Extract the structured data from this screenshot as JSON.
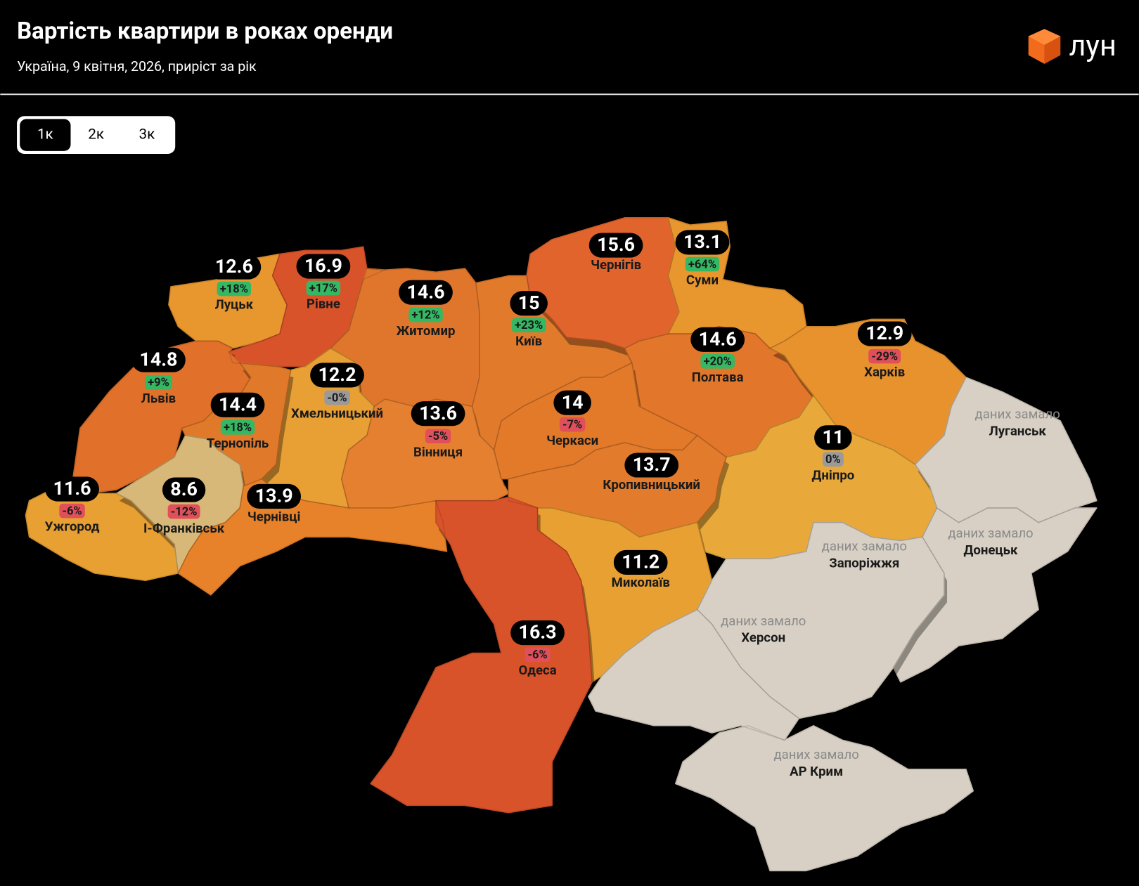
{
  "header": {
    "title": "Вартість квартири в роках оренди",
    "subtitle": "Україна, 9 квітня, 2026, приріст за рік",
    "logo": "лун"
  },
  "tabs": {
    "items": [
      "1к",
      "2к",
      "3к"
    ],
    "selected": 0
  },
  "regions": [
    {
      "name": "Луцьк",
      "value": 12.6,
      "change": "+18%",
      "change_color": "#34b864",
      "color": "#e8962e"
    },
    {
      "name": "Рівне",
      "value": 16.9,
      "change": "+17%",
      "change_color": "#34b864",
      "color": "#d9532a"
    },
    {
      "name": "Житомир",
      "value": 14.6,
      "change": "+12%",
      "change_color": "#34b864",
      "color": "#e0762b"
    },
    {
      "name": "Київ",
      "value": 15,
      "change": "+23%",
      "change_color": "#34b864",
      "color": "#e27a2c"
    },
    {
      "name": "Чернігів",
      "value": 15.6,
      "color": "#e2642d"
    },
    {
      "name": "Суми",
      "value": 13.1,
      "change": "+64%",
      "change_color": "#34b864",
      "color": "#e8962e"
    },
    {
      "name": "Полтава",
      "value": 14.6,
      "change": "+20%",
      "change_color": "#34b864",
      "color": "#e2762a"
    },
    {
      "name": "Харків",
      "value": 12.9,
      "change": "-29%",
      "change_color": "#e0505a",
      "color": "#e8922e"
    },
    {
      "name": "Львів",
      "value": 14.8,
      "change": "+9%",
      "change_color": "#34b864",
      "color": "#e0702a"
    },
    {
      "name": "Хмельницький",
      "value": 12.2,
      "change": "-0%",
      "change_color": "#9a9a9a",
      "color": "#e8a035"
    },
    {
      "name": "Тернопіль",
      "value": 14.4,
      "change": "+18%",
      "change_color": "#34b864",
      "color": "#e07a2a"
    },
    {
      "name": "Вінниця",
      "value": 13.6,
      "change": "-5%",
      "change_color": "#e0505a",
      "color": "#e58030"
    },
    {
      "name": "Черкаси",
      "value": 14,
      "change": "-7%",
      "change_color": "#e0505a",
      "color": "#e27a2a"
    },
    {
      "name": "Дніпро",
      "value": 11,
      "change": "0%",
      "change_color": "#9a9a9a",
      "color": "#e8a83a"
    },
    {
      "name": "Кропивницький",
      "value": 13.7,
      "color": "#e27b2c"
    },
    {
      "name": "Ужгород",
      "value": 11.6,
      "change": "-6%",
      "change_color": "#e0505a",
      "color": "#e8a032"
    },
    {
      "name": "І-Франківськ",
      "value": 8.6,
      "change": "-12%",
      "change_color": "#e0505a",
      "color": "#d8b878"
    },
    {
      "name": "Чернівці",
      "value": 13.9,
      "color": "#e8822a"
    },
    {
      "name": "Миколаїв",
      "value": 11.2,
      "color": "#e8a032"
    },
    {
      "name": "Одеса",
      "value": 16.3,
      "change": "-6%",
      "change_color": "#e0505a",
      "color": "#d9532a"
    },
    {
      "name": "Луганськ",
      "note": "даних замало",
      "color": "#d8d0c4"
    },
    {
      "name": "Донецьк",
      "note": "даних замало",
      "color": "#d8d0c4"
    },
    {
      "name": "Запоріжжя",
      "note": "даних замало",
      "color": "#d8d0c4"
    },
    {
      "name": "Херсон",
      "note": "даних замало",
      "color": "#d8d0c4"
    },
    {
      "name": "АР Крим",
      "note": "даних замало",
      "color": "#d8d0c4"
    }
  ]
}
